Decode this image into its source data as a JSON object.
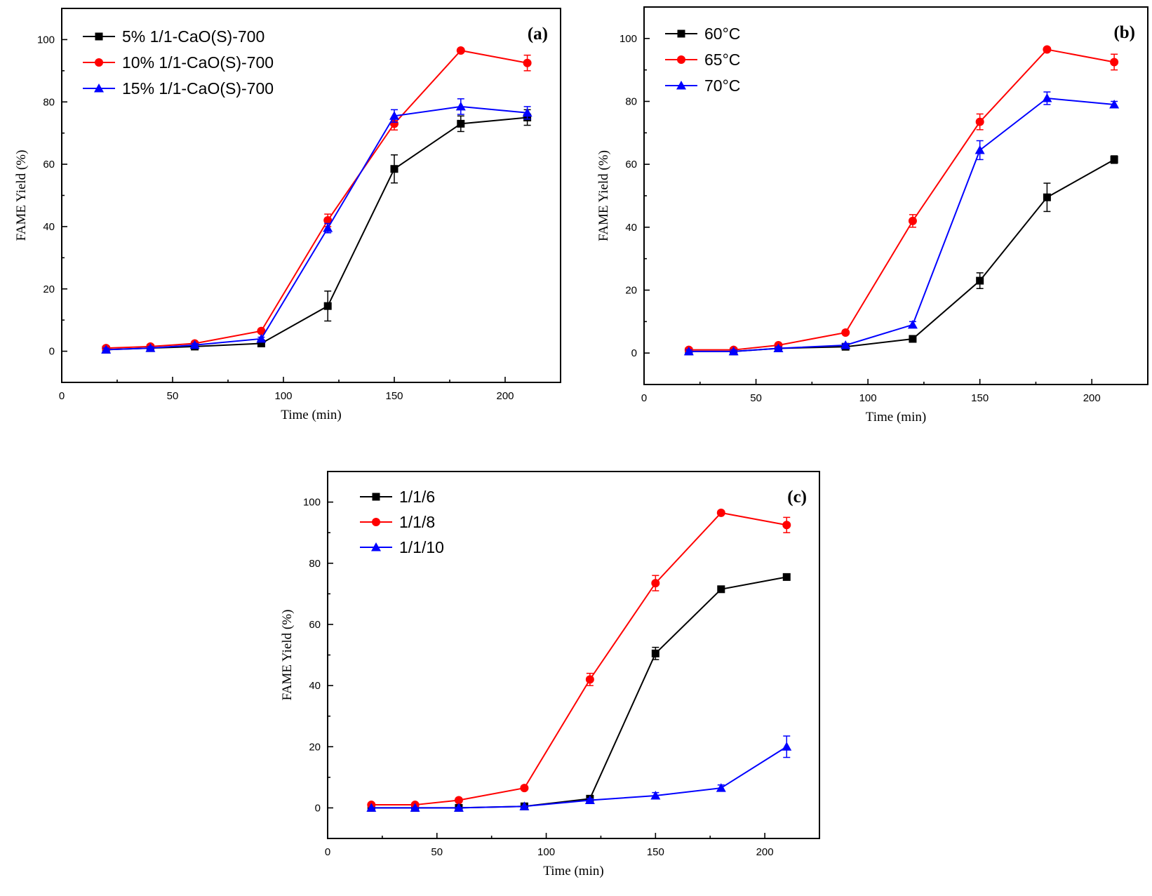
{
  "chart_data": [
    {
      "type": "line",
      "panel_label": "(a)",
      "xlabel": "Time (min)",
      "ylabel": "FAME Yield (%)",
      "xlim": [
        0,
        225
      ],
      "ylim": [
        -10,
        110
      ],
      "xticks": [
        0,
        50,
        100,
        150,
        200
      ],
      "yticks": [
        0,
        20,
        40,
        60,
        80,
        100
      ],
      "legend_position": "top-left",
      "x": [
        20,
        40,
        60,
        90,
        120,
        150,
        180,
        210
      ],
      "series": [
        {
          "name": "5% 1/1-CaO(S)-700",
          "color": "#000000",
          "marker": "square",
          "values": [
            0.5,
            1.0,
            1.5,
            2.5,
            14.5,
            58.5,
            73.0,
            75.0
          ],
          "errors": [
            0.5,
            0.5,
            0.5,
            0.8,
            4.8,
            4.5,
            2.5,
            2.5
          ]
        },
        {
          "name": "10% 1/1-CaO(S)-700",
          "color": "#ff0000",
          "marker": "circle",
          "values": [
            1.0,
            1.5,
            2.5,
            6.5,
            42.0,
            73.0,
            96.5,
            92.5
          ],
          "errors": [
            0.5,
            0.5,
            0.5,
            0.5,
            2.0,
            2.0,
            0.5,
            2.5
          ]
        },
        {
          "name": "15% 1/1-CaO(S)-700",
          "color": "#0000ff",
          "marker": "triangle",
          "values": [
            0.5,
            1.0,
            2.0,
            4.0,
            39.5,
            75.5,
            78.5,
            76.5
          ],
          "errors": [
            0.5,
            0.5,
            0.5,
            0.5,
            1.5,
            2.0,
            2.5,
            2.0
          ]
        }
      ]
    },
    {
      "type": "line",
      "panel_label": "(b)",
      "xlabel": "Time (min)",
      "ylabel": "FAME Yield (%)",
      "xlim": [
        0,
        225
      ],
      "ylim": [
        -10,
        110
      ],
      "xticks": [
        0,
        50,
        100,
        150,
        200
      ],
      "yticks": [
        0,
        20,
        40,
        60,
        80,
        100
      ],
      "legend_position": "top-left",
      "x": [
        20,
        40,
        60,
        90,
        120,
        150,
        180,
        210
      ],
      "series": [
        {
          "name": "60°C",
          "color": "#000000",
          "marker": "square",
          "values": [
            0.5,
            0.5,
            1.5,
            2.0,
            4.5,
            23.0,
            49.5,
            61.5
          ],
          "errors": [
            0.5,
            0.5,
            0.5,
            0.5,
            0.5,
            2.5,
            4.5,
            1.2
          ]
        },
        {
          "name": "65°C",
          "color": "#ff0000",
          "marker": "circle",
          "values": [
            1.0,
            1.0,
            2.5,
            6.5,
            42.0,
            73.5,
            96.5,
            92.5
          ],
          "errors": [
            0.5,
            0.5,
            0.5,
            0.5,
            2.0,
            2.5,
            0.5,
            2.5
          ]
        },
        {
          "name": "70°C",
          "color": "#0000ff",
          "marker": "triangle",
          "values": [
            0.5,
            0.5,
            1.5,
            2.5,
            9.0,
            64.5,
            81.0,
            79.0
          ],
          "errors": [
            0.5,
            0.5,
            0.5,
            0.5,
            1.0,
            3.0,
            2.0,
            1.0
          ]
        }
      ]
    },
    {
      "type": "line",
      "panel_label": "(c)",
      "xlabel": "Time (min)",
      "ylabel": "FAME Yield (%)",
      "xlim": [
        0,
        225
      ],
      "ylim": [
        -10,
        110
      ],
      "xticks": [
        0,
        50,
        100,
        150,
        200
      ],
      "yticks": [
        0,
        20,
        40,
        60,
        80,
        100
      ],
      "legend_position": "top-left",
      "x": [
        20,
        40,
        60,
        90,
        120,
        150,
        180,
        210
      ],
      "series": [
        {
          "name": "1/1/6",
          "color": "#000000",
          "marker": "square",
          "values": [
            0.0,
            0.0,
            0.0,
            0.5,
            3.0,
            50.5,
            71.5,
            75.5
          ],
          "errors": [
            0.3,
            0.3,
            0.3,
            0.3,
            0.5,
            2.0,
            0.8,
            0.8
          ]
        },
        {
          "name": "1/1/8",
          "color": "#ff0000",
          "marker": "circle",
          "values": [
            1.0,
            1.0,
            2.5,
            6.5,
            42.0,
            73.5,
            96.5,
            92.5
          ],
          "errors": [
            0.5,
            0.5,
            0.5,
            0.5,
            2.0,
            2.5,
            0.5,
            2.5
          ]
        },
        {
          "name": "1/1/10",
          "color": "#0000ff",
          "marker": "triangle",
          "values": [
            0.0,
            0.0,
            0.0,
            0.5,
            2.5,
            4.0,
            6.5,
            20.0
          ],
          "errors": [
            0.3,
            0.3,
            0.3,
            0.3,
            0.5,
            1.0,
            1.0,
            3.5
          ]
        }
      ]
    }
  ]
}
